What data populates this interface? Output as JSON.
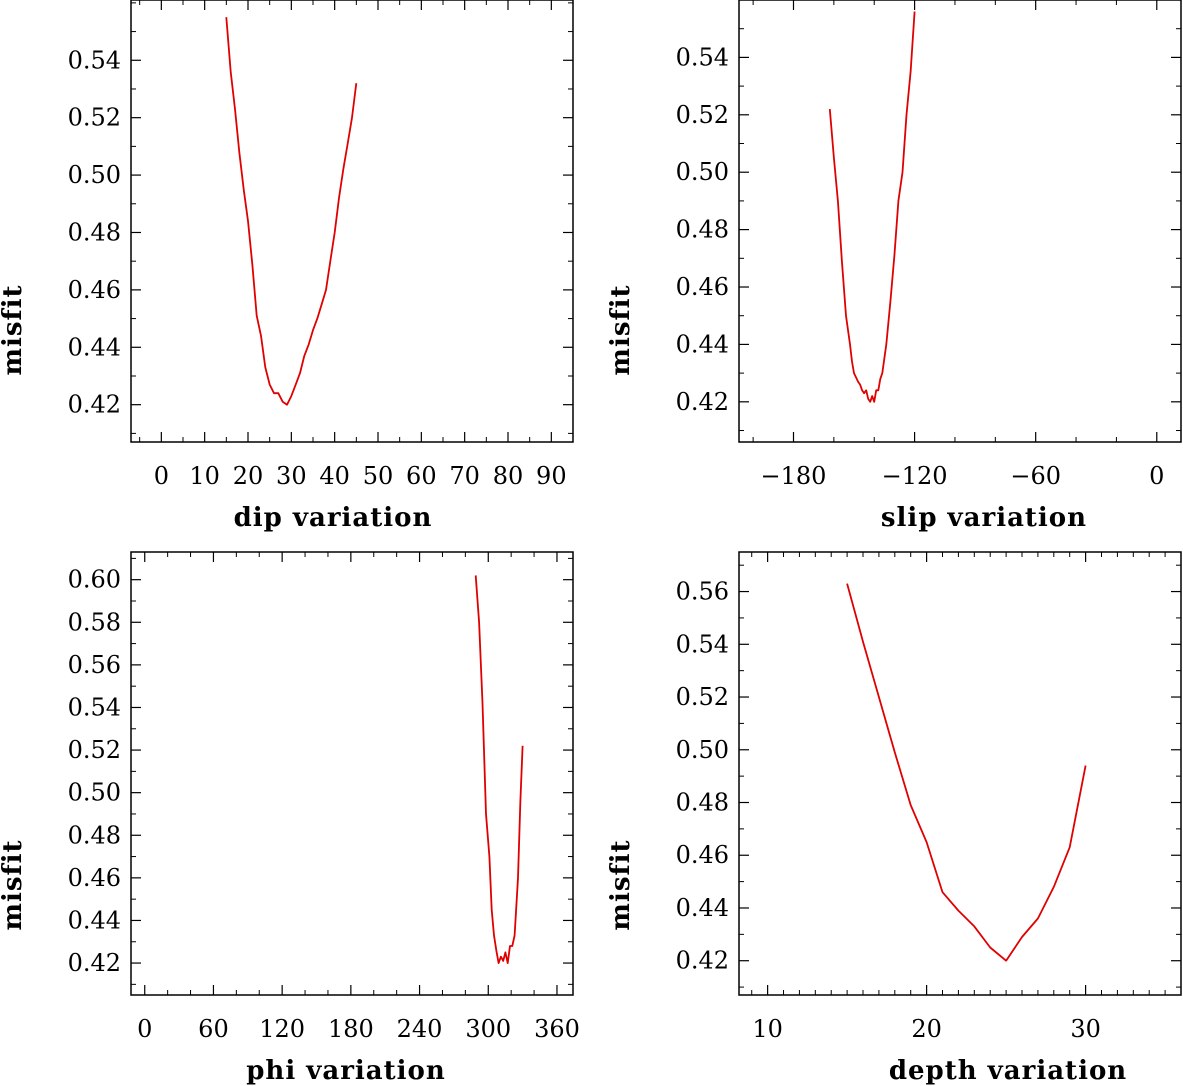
{
  "colors": {
    "line": "#e00000",
    "axes": "#000000",
    "background": "#ffffff"
  },
  "chart_data": [
    {
      "type": "line",
      "xlabel": "dip    variation",
      "ylabel": "misfit",
      "xlim": [
        -7,
        95
      ],
      "ylim": [
        0.407,
        0.561
      ],
      "xticks": [
        0,
        10,
        20,
        30,
        40,
        50,
        60,
        70,
        80,
        90
      ],
      "xtick_labels": [
        "0",
        "10",
        "20",
        "30",
        "40",
        "50",
        "60",
        "70",
        "80",
        "90"
      ],
      "x_minor_step": 5,
      "yticks": [
        0.42,
        0.44,
        0.46,
        0.48,
        0.5,
        0.52,
        0.54
      ],
      "ytick_labels": [
        "0.42",
        "0.44",
        "0.46",
        "0.48",
        "0.50",
        "0.52",
        "0.54"
      ],
      "y_minor_step": 0.01,
      "grid": false,
      "series": [
        {
          "x": [
            15,
            16,
            17,
            18,
            19,
            20,
            21,
            22,
            23,
            24,
            25,
            26,
            27,
            28,
            29,
            30,
            31,
            32,
            33,
            34,
            35,
            36,
            37,
            38,
            39,
            40,
            41,
            42,
            43,
            44,
            45
          ],
          "y": [
            0.555,
            0.536,
            0.523,
            0.508,
            0.495,
            0.484,
            0.469,
            0.451,
            0.444,
            0.433,
            0.427,
            0.424,
            0.424,
            0.421,
            0.42,
            0.423,
            0.427,
            0.431,
            0.437,
            0.441,
            0.446,
            0.45,
            0.455,
            0.46,
            0.47,
            0.48,
            0.492,
            0.502,
            0.511,
            0.52,
            0.532
          ]
        }
      ]
    },
    {
      "type": "line",
      "xlabel": "slip    variation",
      "ylabel": "misfit",
      "xlim": [
        -207,
        12
      ],
      "ylim": [
        0.406,
        0.56
      ],
      "xticks": [
        -180,
        -120,
        -60,
        0
      ],
      "xtick_labels": [
        "−180",
        "−120",
        "−60",
        "0"
      ],
      "x_minor_step": 20,
      "yticks": [
        0.42,
        0.44,
        0.46,
        0.48,
        0.5,
        0.52,
        0.54
      ],
      "ytick_labels": [
        "0.42",
        "0.44",
        "0.46",
        "0.48",
        "0.50",
        "0.52",
        "0.54"
      ],
      "y_minor_step": 0.01,
      "grid": false,
      "series": [
        {
          "x": [
            -162,
            -160,
            -158,
            -156,
            -154,
            -152,
            -151,
            -150,
            -148,
            -147,
            -146,
            -145,
            -144,
            -143,
            -142,
            -141,
            -140,
            -139,
            -138,
            -137,
            -136,
            -134,
            -132,
            -130,
            -128,
            -126,
            -124,
            -122,
            -120
          ],
          "y": [
            0.522,
            0.505,
            0.49,
            0.469,
            0.45,
            0.44,
            0.434,
            0.43,
            0.427,
            0.426,
            0.424,
            0.423,
            0.424,
            0.421,
            0.42,
            0.422,
            0.42,
            0.424,
            0.424,
            0.428,
            0.43,
            0.44,
            0.455,
            0.471,
            0.49,
            0.5,
            0.52,
            0.535,
            0.556
          ]
        }
      ]
    },
    {
      "type": "line",
      "xlabel": "phi    variation",
      "ylabel": "misfit",
      "xlim": [
        -12,
        374
      ],
      "ylim": [
        0.405,
        0.613
      ],
      "xticks": [
        0,
        60,
        120,
        180,
        240,
        300,
        360
      ],
      "xtick_labels": [
        "0",
        "60",
        "120",
        "180",
        "240",
        "300",
        "360"
      ],
      "x_minor_step": 20,
      "yticks": [
        0.42,
        0.44,
        0.46,
        0.48,
        0.5,
        0.52,
        0.54,
        0.56,
        0.58,
        0.6
      ],
      "ytick_labels": [
        "0.42",
        "0.44",
        "0.46",
        "0.48",
        "0.50",
        "0.52",
        "0.54",
        "0.56",
        "0.58",
        "0.60"
      ],
      "y_minor_step": 0.01,
      "grid": false,
      "series": [
        {
          "x": [
            289,
            292,
            295,
            298,
            301,
            303,
            305,
            307,
            309,
            311,
            313,
            315,
            317,
            319,
            321,
            323,
            326,
            328,
            330
          ],
          "y": [
            0.602,
            0.58,
            0.542,
            0.49,
            0.47,
            0.445,
            0.433,
            0.426,
            0.42,
            0.423,
            0.421,
            0.425,
            0.42,
            0.428,
            0.428,
            0.433,
            0.46,
            0.495,
            0.522
          ]
        }
      ]
    },
    {
      "type": "line",
      "xlabel": "depth  variation",
      "ylabel": "misfit",
      "xlim": [
        8.2,
        36
      ],
      "ylim": [
        0.407,
        0.575
      ],
      "xticks": [
        10,
        20,
        30
      ],
      "xtick_labels": [
        "10",
        "20",
        "30"
      ],
      "x_minor_step": 1,
      "yticks": [
        0.42,
        0.44,
        0.46,
        0.48,
        0.5,
        0.52,
        0.54,
        0.56
      ],
      "ytick_labels": [
        "0.42",
        "0.44",
        "0.46",
        "0.48",
        "0.50",
        "0.52",
        "0.54",
        "0.56"
      ],
      "y_minor_step": 0.01,
      "grid": false,
      "series": [
        {
          "x": [
            15,
            16,
            17,
            18,
            19,
            20,
            21,
            22,
            23,
            24,
            25,
            26,
            27,
            28,
            29,
            30
          ],
          "y": [
            0.563,
            0.541,
            0.52,
            0.499,
            0.479,
            0.465,
            0.446,
            0.439,
            0.433,
            0.425,
            0.42,
            0.429,
            0.436,
            0.448,
            0.463,
            0.494
          ]
        }
      ]
    }
  ]
}
